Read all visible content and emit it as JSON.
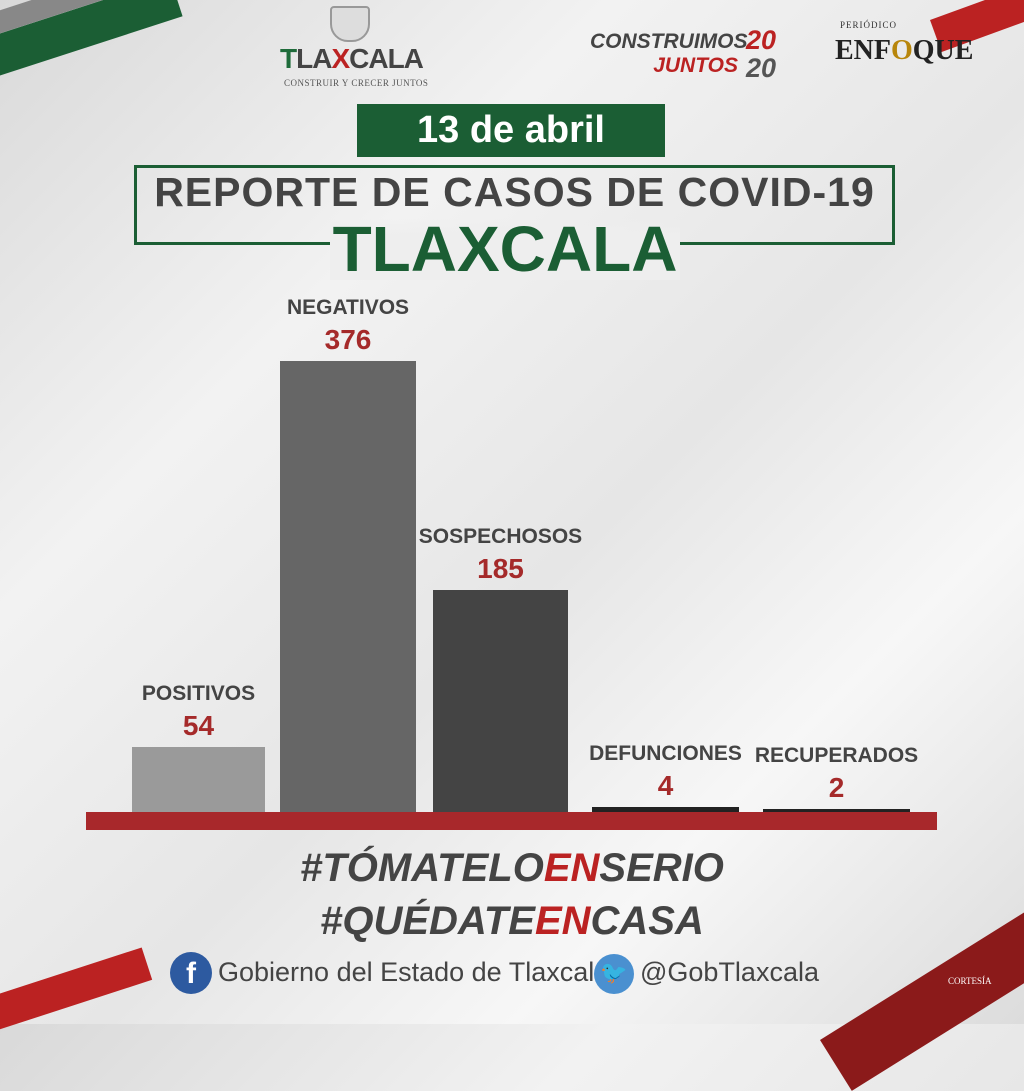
{
  "header": {
    "logo_left": "TLAXCALA",
    "logo_left_sub": "CONSTRUIR Y CRECER JUNTOS",
    "slogan_line1": "CONSTRUIMOS",
    "slogan_line2": "JUNTOS",
    "slogan_year1": "20",
    "slogan_year2": "20",
    "periodico": "PERIÓDICO",
    "enfoque_a": "ENF",
    "enfoque_b": "O",
    "enfoque_c": "QUE"
  },
  "date": "13 de abril",
  "title": "REPORTE DE CASOS DE COVID-19",
  "subtitle": "TLAXCALA",
  "chart_data": {
    "type": "bar",
    "categories": [
      "POSITIVOS",
      "NEGATIVOS",
      "SOSPECHOSOS",
      "DEFUNCIONES",
      "RECUPERADOS"
    ],
    "values": [
      54,
      376,
      185,
      4,
      2
    ],
    "labels": [
      "54",
      "376",
      "185",
      "4",
      "2"
    ],
    "colors": [
      "#9a9a9a",
      "#666666",
      "#444444",
      "#222222",
      "#222222"
    ],
    "baseline_color": "#a8282b"
  },
  "tags": {
    "t1a": "#TÓMATELO",
    "t1b": "EN",
    "t1c": "SERIO",
    "t2a": "#QUÉDATE",
    "t2b": "EN",
    "t2c": "CASA"
  },
  "footer": {
    "facebook": "Gobierno del Estado de Tlaxcala",
    "twitter": "@GobTlaxcala",
    "cortesia": "CORTESÍA"
  }
}
